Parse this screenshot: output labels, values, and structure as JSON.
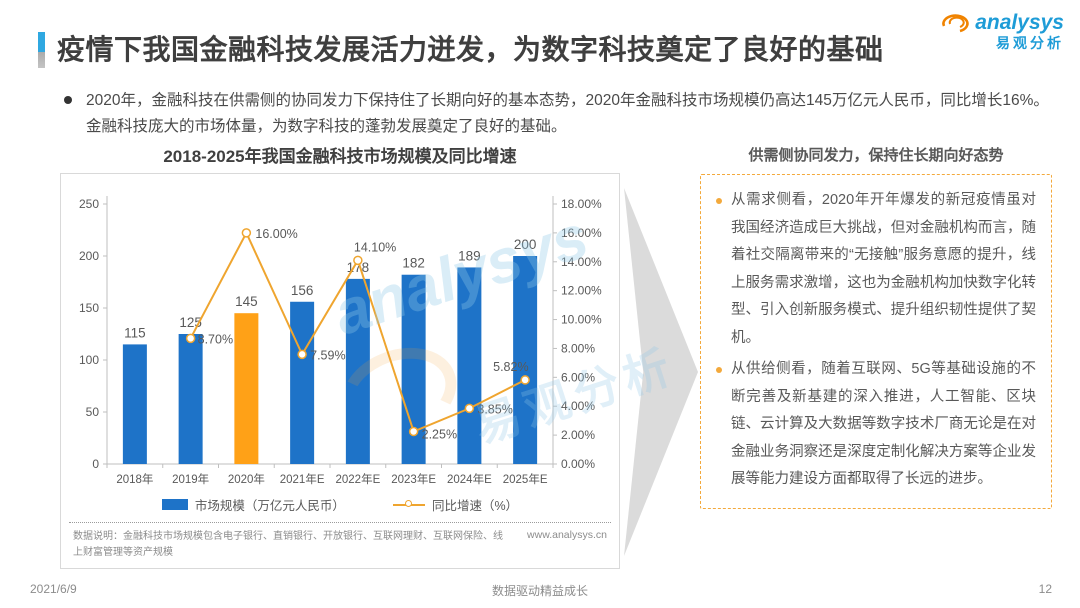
{
  "slide": {
    "title": "疫情下我国金融科技发展活力迸发，为数字科技奠定了良好的基础",
    "intro": "2020年，金融科技在供需侧的协同发力下保持住了长期向好的基本态势，2020年金融科技市场规模仍高达145万亿元人民币，同比增长16%。金融科技庞大的市场体量，为数字科技的蓬勃发展奠定了良好的基础。",
    "footer": {
      "date": "2021/6/9",
      "slogan": "数据驱动精益成长",
      "page": "12"
    }
  },
  "logo": {
    "brand": "analysys",
    "brand_cn": "易观分析"
  },
  "watermark": {
    "line1": "analysys",
    "line2": "易观分析"
  },
  "chart_data": {
    "type": "bar+line",
    "title": "2018-2025年我国金融科技市场规模及同比增速",
    "categories": [
      "2018年",
      "2019年",
      "2020年",
      "2021年E",
      "2022年E",
      "2023年E",
      "2024年E",
      "2025年E"
    ],
    "series": [
      {
        "name": "市场规模（万亿元人民币）",
        "type": "bar",
        "values": [
          115,
          125,
          145,
          156,
          178,
          182,
          189,
          200
        ]
      },
      {
        "name": "同比增速（%）",
        "type": "line",
        "values": [
          null,
          8.7,
          16.0,
          7.59,
          14.1,
          2.25,
          3.85,
          5.82
        ],
        "labels": [
          null,
          "8.70%",
          "16.00%",
          "7.59%",
          "14.10%",
          "2.25%",
          "3.85%",
          "5.82%"
        ]
      }
    ],
    "left_axis": {
      "ticks": [
        0,
        50,
        100,
        150,
        200,
        250
      ],
      "max": 250
    },
    "right_axis": {
      "ticks": [
        "0.00%",
        "2.00%",
        "4.00%",
        "6.00%",
        "8.00%",
        "10.00%",
        "12.00%",
        "14.00%",
        "16.00%",
        "18.00%"
      ],
      "max": 18
    },
    "bar_color": "#1E73C8",
    "highlight_index": 2,
    "highlight_color": "#FFA117",
    "line_color": "#EFA52F",
    "legend_position": "bottom",
    "grid": false,
    "note": "数据说明：金融科技市场规模包含电子银行、直销银行、开放银行、互联网理财、互联网保险、线上财富管理等资产规模",
    "source_url": "www.analysys.cn"
  },
  "panel": {
    "title": "供需侧协同发力，保持住长期向好态势",
    "bullets": [
      "从需求侧看，2020年开年爆发的新冠疫情虽对我国经济造成巨大挑战，但对金融机构而言，随着社交隔离带来的“无接触”服务意愿的提升，线上服务需求激增，这也为金融机构加快数字化转型、引入创新服务模式、提升组织韧性提供了契机。",
      "从供给侧看，随着互联网、5G等基础设施的不断完善及新基建的深入推进，人工智能、区块链、云计算及大数据等数字技术厂商无论是在对金融业务洞察还是深度定制化解决方案等企业发展等能力建设方面都取得了长远的进步。"
    ]
  }
}
